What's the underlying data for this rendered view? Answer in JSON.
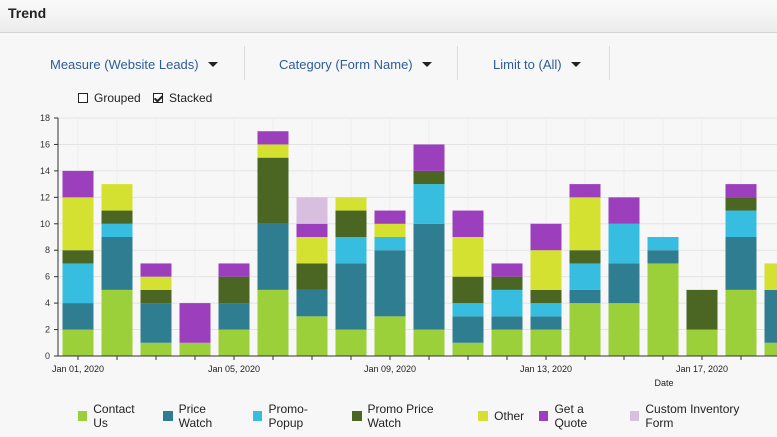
{
  "header": {
    "title": "Trend"
  },
  "controls": {
    "measure_label": "Measure (Website Leads)",
    "category_label": "Category (Form Name)",
    "limit_label": "Limit to (All)",
    "grouped_label": "Grouped",
    "stacked_label": "Stacked",
    "grouped_checked": false,
    "stacked_checked": true
  },
  "chart_data": {
    "type": "bar",
    "stacked": true,
    "xlabel": "Date",
    "ylabel": "",
    "ylim": [
      0,
      18
    ],
    "yticks": [
      0,
      2,
      4,
      6,
      8,
      10,
      12,
      14,
      16,
      18
    ],
    "grid": true,
    "legend_position": "bottom",
    "categories": [
      "Jan 01, 2020",
      "Jan 02, 2020",
      "Jan 03, 2020",
      "Jan 04, 2020",
      "Jan 05, 2020",
      "Jan 06, 2020",
      "Jan 07, 2020",
      "Jan 08, 2020",
      "Jan 09, 2020",
      "Jan 10, 2020",
      "Jan 11, 2020",
      "Jan 12, 2020",
      "Jan 13, 2020",
      "Jan 14, 2020",
      "Jan 15, 2020",
      "Jan 16, 2020",
      "Jan 17, 2020",
      "Jan 18, 2020",
      "Jan 19, 2020"
    ],
    "tick_labels": [
      "Jan 01, 2020",
      "",
      "",
      "",
      "Jan 05, 2020",
      "",
      "",
      "",
      "Jan 09, 2020",
      "",
      "",
      "",
      "Jan 13, 2020",
      "",
      "",
      "",
      "Jan 17, 2020",
      "",
      ""
    ],
    "series": [
      {
        "name": "Contact Us",
        "color": "#9bd03a",
        "values": [
          2,
          5,
          1,
          1,
          2,
          5,
          3,
          2,
          3,
          2,
          1,
          2,
          2,
          4,
          4,
          7,
          2,
          5,
          1
        ]
      },
      {
        "name": "Price Watch",
        "color": "#2f7d91",
        "values": [
          2,
          4,
          3,
          0,
          2,
          5,
          2,
          5,
          5,
          8,
          2,
          1,
          1,
          1,
          3,
          1,
          0,
          4,
          4
        ]
      },
      {
        "name": "Promo-Popup",
        "color": "#36bde0",
        "values": [
          3,
          1,
          0,
          0,
          0,
          0,
          0,
          2,
          1,
          3,
          1,
          2,
          1,
          2,
          3,
          1,
          0,
          2,
          0
        ]
      },
      {
        "name": "Promo Price Watch",
        "color": "#4a6622",
        "values": [
          1,
          1,
          1,
          0,
          2,
          5,
          2,
          2,
          0,
          1,
          2,
          1,
          1,
          1,
          0,
          0,
          3,
          1,
          0
        ]
      },
      {
        "name": "Other",
        "color": "#d4e130",
        "values": [
          4,
          2,
          1,
          0,
          0,
          1,
          2,
          1,
          1,
          0,
          3,
          0,
          3,
          4,
          0,
          0,
          0,
          0,
          2
        ]
      },
      {
        "name": "Get a Quote",
        "color": "#9c3fbc",
        "values": [
          2,
          0,
          1,
          3,
          1,
          1,
          1,
          0,
          1,
          2,
          2,
          1,
          2,
          1,
          2,
          0,
          0,
          1,
          0
        ]
      },
      {
        "name": "Custom Inventory Form",
        "color": "#d8bfe0",
        "values": [
          0,
          0,
          0,
          0,
          0,
          0,
          2,
          0,
          0,
          0,
          0,
          0,
          0,
          0,
          0,
          0,
          0,
          0,
          0
        ]
      }
    ]
  }
}
